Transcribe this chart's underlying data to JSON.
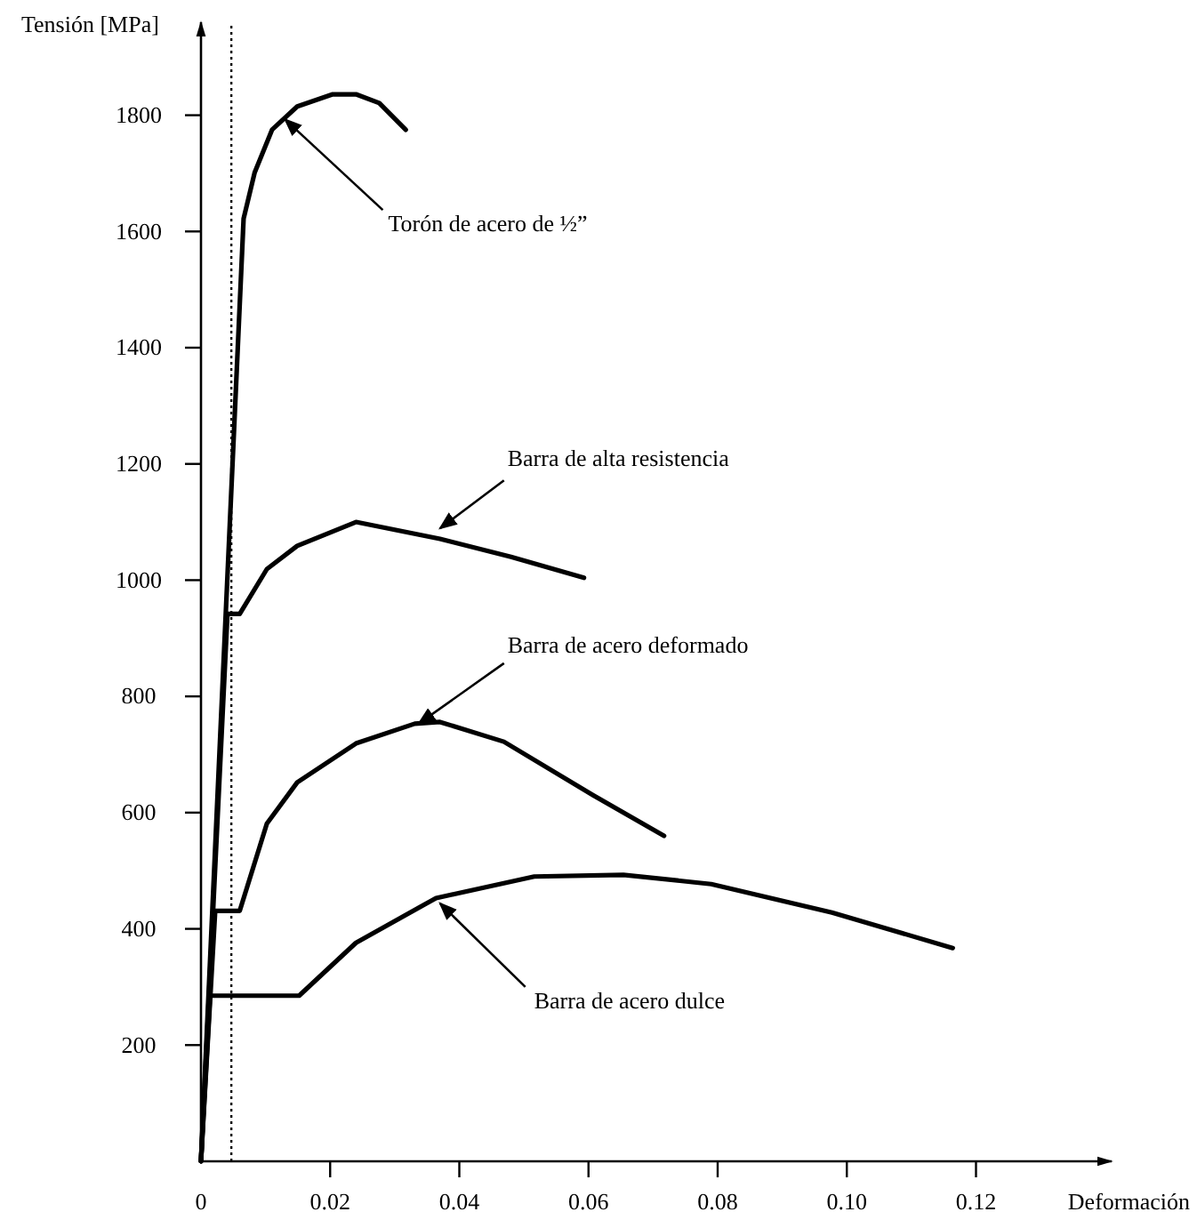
{
  "chart_data": {
    "type": "line",
    "ylabel": "Tensión [MPa]",
    "xlabel": "Deformación",
    "xlim": [
      0,
      0.141
    ],
    "ylim": [
      0,
      1960
    ],
    "xticks": [
      0,
      0.02,
      0.04,
      0.06,
      0.08,
      {
        "value": 0.1,
        "label": "0.10"
      },
      0.12
    ],
    "yticks": [
      {
        "value": 0,
        "label": null
      },
      200,
      400,
      600,
      800,
      1000,
      1200,
      1400,
      1600,
      1800
    ],
    "grid": false,
    "marker": "none",
    "line_style": "solid",
    "series": [
      {
        "color": "#000000",
        "x": [
          0,
          0.0066,
          0.0083,
          0.011,
          0.0149,
          0.0204,
          0.024,
          0.0276,
          0.0317
        ],
        "values": [
          0,
          1622,
          1701,
          1775,
          1815,
          1836,
          1836,
          1821,
          1775
        ]
      },
      {
        "color": "#000000",
        "x": [
          0,
          0.0041,
          0.006,
          0.0102,
          0.0149,
          0.024,
          0.037,
          0.048,
          0.0593
        ],
        "values": [
          0,
          942,
          942,
          1019,
          1059,
          1100,
          1071,
          1040,
          1004
        ]
      },
      {
        "color": "#000000",
        "x": [
          0,
          0.0022,
          0.006,
          0.0102,
          0.0149,
          0.024,
          0.0331,
          0.037,
          0.0469,
          0.0607,
          0.0717
        ],
        "values": [
          0,
          431,
          431,
          581,
          652,
          719,
          753,
          756,
          722,
          630,
          560
        ]
      },
      {
        "color": "#000000",
        "x": [
          0,
          0.0014,
          0.0152,
          0.024,
          0.0364,
          0.0516,
          0.0654,
          0.079,
          0.0977,
          0.1164
        ],
        "values": [
          0,
          285,
          285,
          376,
          453,
          490,
          493,
          477,
          428,
          367
        ]
      }
    ],
    "ref_lines": [
      {
        "axis": "x",
        "value": 0.0047,
        "line_style": "dotted",
        "color": "#000000"
      }
    ],
    "annotations": [
      {
        "text": "Torón de acero de ½”",
        "x": 0.013,
        "y": 1793
      },
      {
        "text": "Barra de alta resistencia",
        "x": 0.037,
        "y": 1089
      },
      {
        "text": "Barra de acero deformado",
        "x": 0.0337,
        "y": 753
      },
      {
        "text": "Barra de acero dulce",
        "x": 0.037,
        "y": 444
      }
    ]
  }
}
